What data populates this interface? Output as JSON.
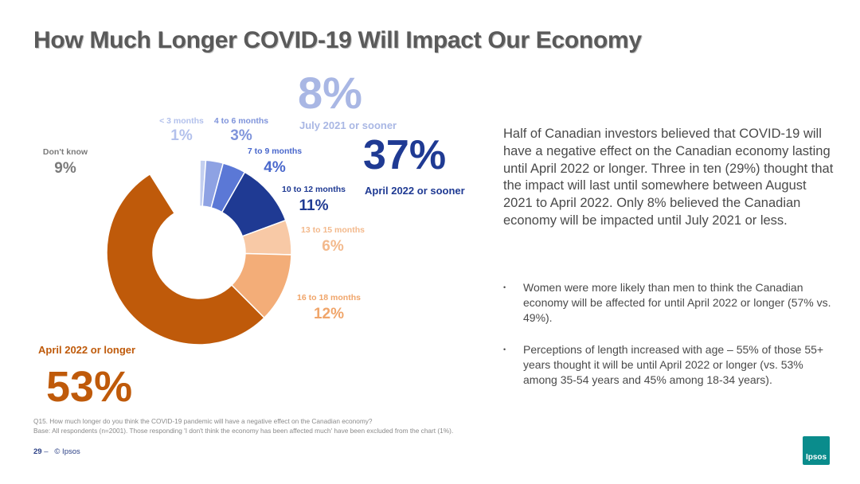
{
  "title": "How Much Longer COVID-19 Will Impact Our Economy",
  "chart_data": {
    "type": "pie",
    "categories": [
      "< 3 months",
      "4 to 6 months",
      "7 to 9 months",
      "10 to 12 months",
      "13 to 15 months",
      "16 to 18 months",
      "April 2022 or longer",
      "Don't know"
    ],
    "values": [
      1,
      3,
      4,
      11,
      6,
      12,
      53,
      9
    ],
    "value_labels": [
      "1%",
      "3%",
      "4%",
      "11%",
      "6%",
      "12%",
      "53%",
      "9%"
    ],
    "colors": [
      "#c3cff0",
      "#8ea2e3",
      "#5b78d6",
      "#1f3a93",
      "#f8c9a6",
      "#f3ad78",
      "#bf5a0a",
      "#ffffff"
    ],
    "label_colors": [
      "#b3c1ec",
      "#7f94db",
      "#4a68cc",
      "#1f3a93",
      "#f3b98c",
      "#f0a56a",
      "#bf5a0a",
      "#7a7a7a"
    ],
    "donut": true
  },
  "callouts": {
    "july_pct": "8%",
    "july_label": "July 2021 or sooner",
    "april_sooner_pct": "37%",
    "april_sooner_label": "April 2022 or sooner",
    "april_longer_label": "April 2022 or longer",
    "april_longer_pct": "53%"
  },
  "summary": "Half of Canadian investors believed that COVID-19 will have a negative effect on the Canadian economy lasting until April 2022 or longer. Three in ten (29%) thought that the impact will last until somewhere between August 2021 to April 2022.  Only 8% believed the Canadian economy will be impacted until July 2021 or less.",
  "bullets": [
    "Women were more likely than men to think the Canadian economy will be affected for until April 2022 or longer (57% vs. 49%).",
    "Perceptions of length increased with age – 55% of those 55+ years thought it will be until April 2022 or longer (vs. 53% among 35-54 years and 45% among 18-34 years)."
  ],
  "bullet_marker": "•",
  "footnote_question": "Q15. How much longer do you think the COVID-19 pandemic will have a negative effect on the Canadian economy?",
  "footnote_base": "Base: All respondents (n=2001). Those responding 'I don't think the economy has been affected much' have been excluded from the chart (1%).",
  "page_number": "29",
  "page_sep": " – ",
  "copyright": "© Ipsos",
  "logo_text": "Ipsos"
}
